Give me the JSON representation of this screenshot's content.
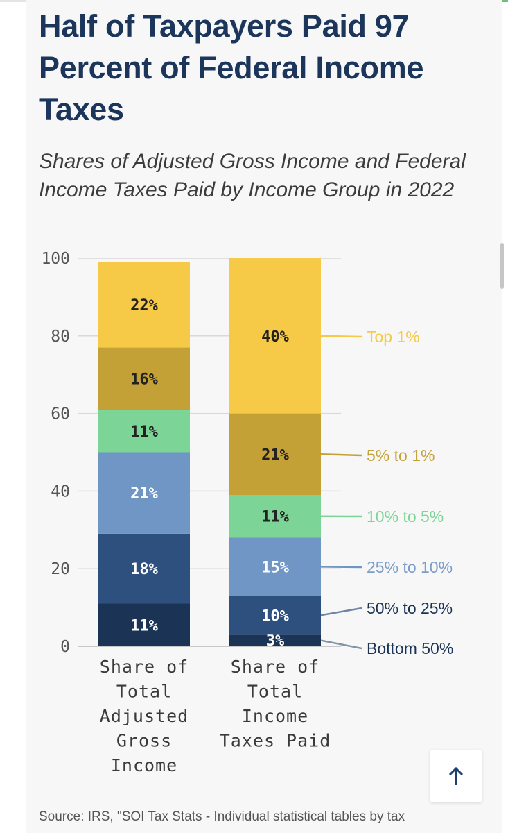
{
  "title": "Half of Taxpayers Paid 97 Percent of Federal Income Taxes",
  "subtitle": "Shares of Adjusted Gross Income and Federal Income Taxes Paid by Income Group in 2022",
  "source": "Source: IRS, \"SOI Tax Stats - Individual statistical tables by tax",
  "back_to_top_icon": "arrow-up-icon",
  "colors": {
    "Top 1%": "#f6c946",
    "5% to 1%": "#c4a137",
    "10% to 5%": "#7dd497",
    "25% to 10%": "#7096c6",
    "50% to 25%": "#2d507f",
    "Bottom 50%": "#1b3456"
  },
  "chart_data": {
    "type": "bar",
    "stacked": true,
    "ylim": [
      0,
      100
    ],
    "yticks": [
      "0",
      "20",
      "40",
      "60",
      "80",
      "100"
    ],
    "grid": true,
    "legend_placement": "right, labels beside the second bar",
    "categories": [
      "Share of Total Adjusted Gross Income",
      "Share of Total Income Taxes Paid"
    ],
    "category_lines": [
      [
        "Share of",
        "Total",
        "Adjusted",
        "Gross",
        "Income"
      ],
      [
        "Share of",
        "Total",
        "Income",
        "Taxes Paid"
      ]
    ],
    "series": [
      {
        "name": "Bottom 50%",
        "values": [
          11,
          3
        ],
        "labels": [
          "11%",
          "3%"
        ]
      },
      {
        "name": "50% to 25%",
        "values": [
          18,
          10
        ],
        "labels": [
          "18%",
          "10%"
        ]
      },
      {
        "name": "25% to 10%",
        "values": [
          21,
          15
        ],
        "labels": [
          "21%",
          "15%"
        ]
      },
      {
        "name": "10% to 5%",
        "values": [
          11,
          11
        ],
        "labels": [
          "11%",
          "11%"
        ]
      },
      {
        "name": "5% to 1%",
        "values": [
          16,
          21
        ],
        "labels": [
          "16%",
          "21%"
        ]
      },
      {
        "name": "Top 1%",
        "values": [
          22,
          40
        ],
        "labels": [
          "22%",
          "40%"
        ]
      }
    ]
  }
}
